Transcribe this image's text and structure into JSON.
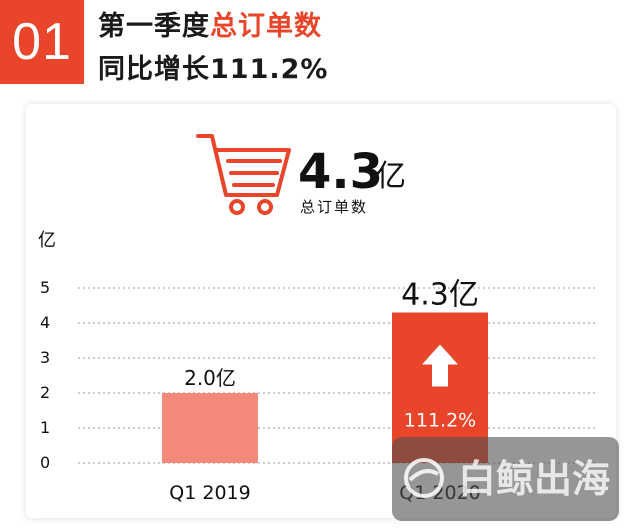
{
  "header": {
    "badge": "01",
    "title_prefix": "第一季度",
    "title_highlight": "总订单数",
    "subtitle": "同比增长111.2%"
  },
  "summary": {
    "icon": "shopping-cart-icon",
    "value": "4.3",
    "unit": "亿",
    "label": "总订单数"
  },
  "watermark": {
    "text": "白鲸出海",
    "icon": "whale-logo-icon"
  },
  "colors": {
    "accent": "#e8452b",
    "bar_2019": "#f5897a",
    "bar_2020": "#e8452b"
  },
  "chart_data": {
    "type": "bar",
    "categories": [
      "Q1    2019",
      "Q1    2020"
    ],
    "values": [
      2.0,
      4.3
    ],
    "data_labels": [
      "2.0亿",
      "4.3亿"
    ],
    "growth_label": "111.2%",
    "growth_icon": "up-arrow-icon",
    "ylabel": "亿",
    "ylim": [
      0,
      5
    ],
    "yticks": [
      0,
      1,
      2,
      3,
      4,
      5
    ],
    "grid": true,
    "legend": "none"
  }
}
